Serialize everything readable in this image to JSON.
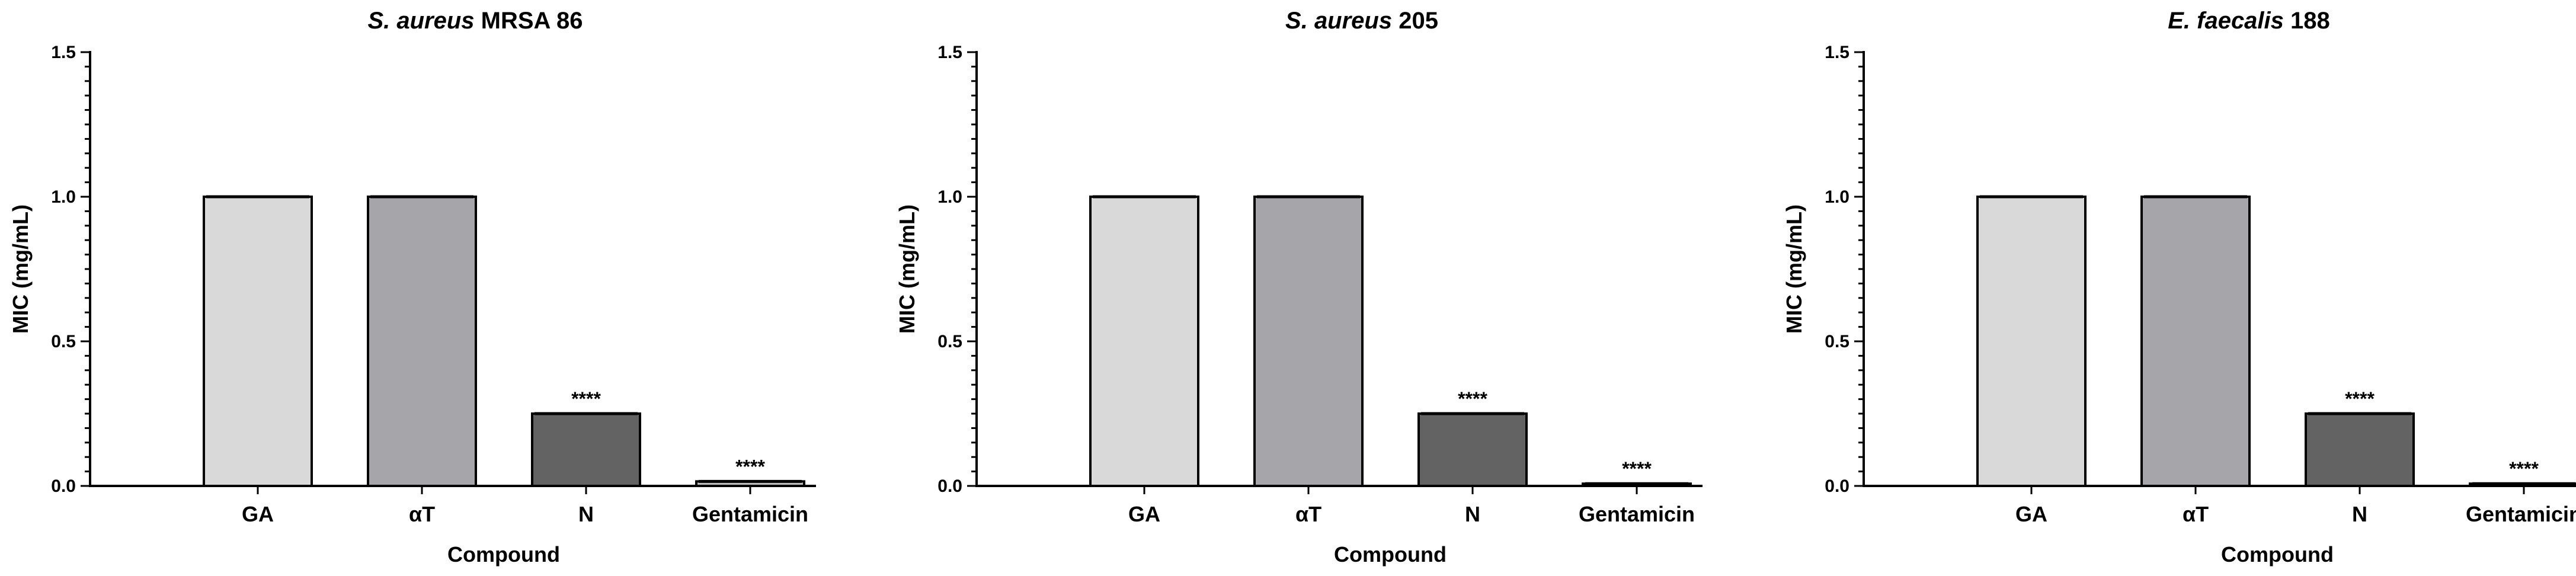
{
  "colors": {
    "bar_fills": [
      "#d9d9d9",
      "#a6a6aa",
      "#636363",
      "#bfbfbf"
    ],
    "stroke": "#000000"
  },
  "chart_data": [
    {
      "type": "bar",
      "title_italic": "S. aureus",
      "title_rest": " MRSA 86",
      "xlabel": "Compound",
      "ylabel": "MIC (mg/mL)",
      "ylim": [
        0,
        1.5
      ],
      "yticks": [
        "0.0",
        "0.5",
        "1.0",
        "1.5"
      ],
      "categories": [
        "GA",
        "αT",
        "N",
        "Gentamicin"
      ],
      "values": [
        1.0,
        1.0,
        0.25,
        0.0156
      ],
      "significance": [
        "",
        "",
        "****",
        "****"
      ],
      "grid": false,
      "legend": "none"
    },
    {
      "type": "bar",
      "title_italic": "S. aureus",
      "title_rest": " 205",
      "xlabel": "Compound",
      "ylabel": "MIC (mg/mL)",
      "ylim": [
        0,
        1.5
      ],
      "yticks": [
        "0.0",
        "0.5",
        "1.0",
        "1.5"
      ],
      "categories": [
        "GA",
        "αT",
        "N",
        "Gentamicin"
      ],
      "values": [
        1.0,
        1.0,
        0.25,
        0.0078
      ],
      "significance": [
        "",
        "",
        "****",
        "****"
      ],
      "grid": false,
      "legend": "none"
    },
    {
      "type": "bar",
      "title_italic": "E. faecalis",
      "title_rest": " 188",
      "xlabel": "Compound",
      "ylabel": "MIC (mg/mL)",
      "ylim": [
        0,
        1.5
      ],
      "yticks": [
        "0.0",
        "0.5",
        "1.0",
        "1.5"
      ],
      "categories": [
        "GA",
        "αT",
        "N",
        "Gentamicin"
      ],
      "values": [
        1.0,
        1.0,
        0.25,
        0.0078
      ],
      "significance": [
        "",
        "",
        "****",
        "****"
      ],
      "grid": false,
      "legend": "none"
    }
  ]
}
